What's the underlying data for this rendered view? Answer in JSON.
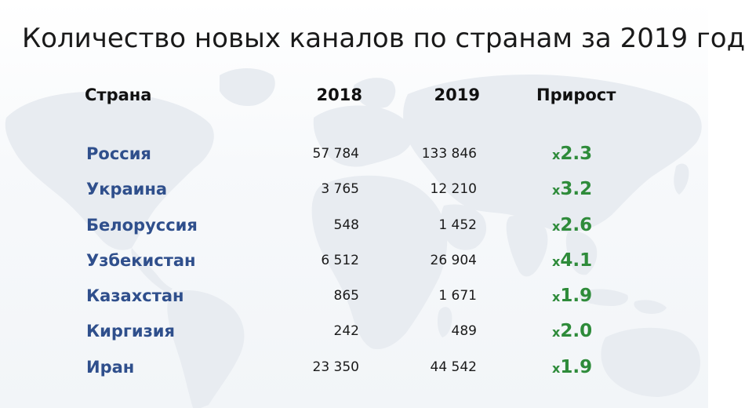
{
  "title": "Количество новых каналов по странам за 2019 год",
  "headers": {
    "country": "Страна",
    "y2018": "2018",
    "y2019": "2019",
    "growth": "Прирост"
  },
  "rows": [
    {
      "country": "Россия",
      "v2018": "57 784",
      "v2019": "133 846",
      "growth_prefix": "x",
      "growth": "2.3"
    },
    {
      "country": "Украина",
      "v2018": "3 765",
      "v2019": "12 210",
      "growth_prefix": "x",
      "growth": "3.2"
    },
    {
      "country": "Белоруссия",
      "v2018": "548",
      "v2019": "1 452",
      "growth_prefix": "x",
      "growth": "2.6"
    },
    {
      "country": "Узбекистан",
      "v2018": "6 512",
      "v2019": "26 904",
      "growth_prefix": "x",
      "growth": "4.1"
    },
    {
      "country": "Казахстан",
      "v2018": "865",
      "v2019": "1 671",
      "growth_prefix": "x",
      "growth": "1.9"
    },
    {
      "country": "Киргизия",
      "v2018": "242",
      "v2019": "489",
      "growth_prefix": "x",
      "growth": "2.0"
    },
    {
      "country": "Иран",
      "v2018": "23 350",
      "v2019": "44 542",
      "growth_prefix": "x",
      "growth": "1.9"
    }
  ],
  "colors": {
    "country_text": "#2f4f8c",
    "growth_text": "#2e8b3a",
    "map_fill": "#e9edf2"
  },
  "background": "world-map"
}
